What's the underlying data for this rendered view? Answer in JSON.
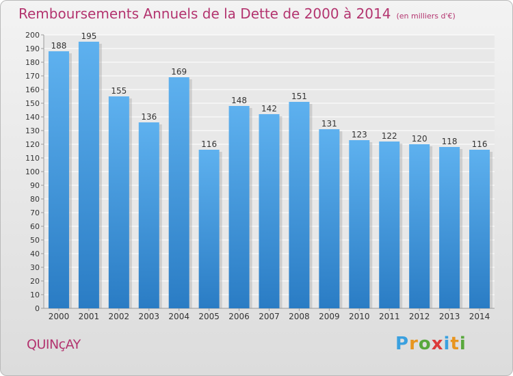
{
  "chart_data": {
    "type": "bar",
    "title": "Remboursements Annuels de la Dette de 2000 à 2014",
    "subtitle": "(en milliers d'€)",
    "categories": [
      "2000",
      "2001",
      "2002",
      "2003",
      "2004",
      "2005",
      "2006",
      "2007",
      "2008",
      "2009",
      "2010",
      "2011",
      "2012",
      "2013",
      "2014"
    ],
    "values": [
      188,
      195,
      155,
      136,
      169,
      116,
      148,
      142,
      151,
      131,
      123,
      122,
      120,
      118,
      116
    ],
    "ylim": [
      0,
      200
    ],
    "yticks": [
      0,
      10,
      20,
      30,
      40,
      50,
      60,
      70,
      80,
      90,
      100,
      110,
      120,
      130,
      140,
      150,
      160,
      170,
      180,
      190,
      200
    ],
    "grid": true,
    "bar_color": "#3d95dc"
  },
  "commune": "QUINçAY",
  "logo_text": "Proxiti"
}
